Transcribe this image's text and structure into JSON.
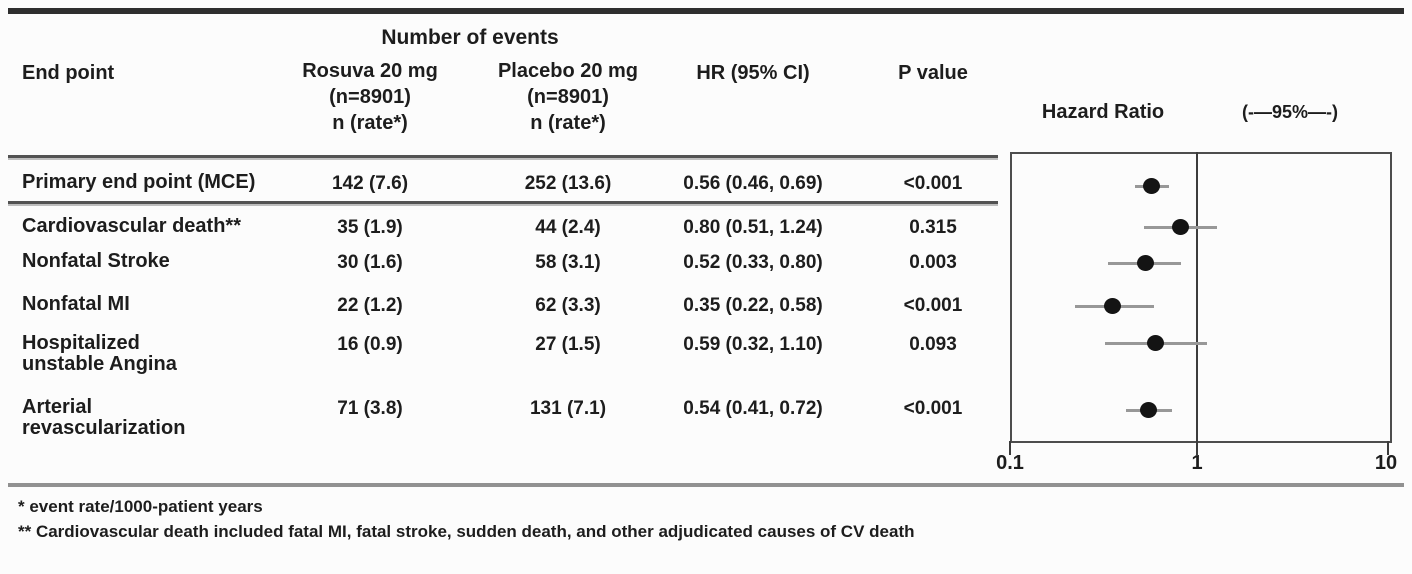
{
  "colors": {
    "text": "#1d1d1d",
    "top_rule": "#2e2e2e",
    "bottom_rule": "#919191",
    "separator_dark": "#525252",
    "separator_light": "#bdbdbd",
    "plot_border": "#4d4d4d",
    "reference_line": "#3c3c3c",
    "whisker": "#989898",
    "marker": "#141414",
    "background": "#fcfcfc"
  },
  "table": {
    "group_header": "Number of events",
    "columns": {
      "endpoint": "End point",
      "rosuva": [
        "Rosuva 20 mg",
        "(n=8901)",
        "n (rate*)"
      ],
      "placebo": [
        "Placebo 20 mg",
        "(n=8901)",
        "n (rate*)"
      ],
      "hr": "HR (95% CI)",
      "p": "P value"
    },
    "rows": [
      {
        "endpoint": [
          "Primary end point (MCE)"
        ],
        "rosuva_n": "142 (7.6)",
        "placebo_n": "252 (13.6)",
        "hr_ci": "0.56 (0.46, 0.69)",
        "p_value": "<0.001"
      },
      {
        "endpoint": [
          "Cardiovascular death**"
        ],
        "rosuva_n": "35 (1.9)",
        "placebo_n": "44 (2.4)",
        "hr_ci": "0.80 (0.51, 1.24)",
        "p_value": "0.315"
      },
      {
        "endpoint": [
          "Nonfatal Stroke"
        ],
        "rosuva_n": "30 (1.6)",
        "placebo_n": "58 (3.1)",
        "hr_ci": "0.52 (0.33, 0.80)",
        "p_value": "0.003"
      },
      {
        "endpoint": [
          "Nonfatal MI"
        ],
        "rosuva_n": "22 (1.2)",
        "placebo_n": "62 (3.3)",
        "hr_ci": "0.35 (0.22, 0.58)",
        "p_value": "<0.001"
      },
      {
        "endpoint": [
          "Hospitalized",
          "unstable Angina"
        ],
        "rosuva_n": "16 (0.9)",
        "placebo_n": "27 (1.5)",
        "hr_ci": "0.59 (0.32, 1.10)",
        "p_value": "0.093"
      },
      {
        "endpoint": [
          "Arterial",
          "revascularization"
        ],
        "rosuva_n": "71 (3.8)",
        "placebo_n": "131 (7.1)",
        "hr_ci": "0.54 (0.41, 0.72)",
        "p_value": "<0.001"
      }
    ]
  },
  "plot": {
    "title": "Hazard Ratio",
    "ci_header": "(-—95%—-)",
    "x_tick_labels": [
      "0.1",
      "1",
      "10"
    ]
  },
  "footnotes": [
    "* event rate/1000-patient years",
    "** Cardiovascular death included fatal MI, fatal stroke, sudden death, and other adjudicated causes of CV death"
  ],
  "chart_data": {
    "type": "scatter",
    "subtype": "forest-plot",
    "title": "Hazard Ratio",
    "x_scale": "log",
    "xlim": [
      0.1,
      10
    ],
    "x_ticks": [
      0.1,
      1,
      10
    ],
    "reference_line_x": 1,
    "ci_level": "95%",
    "legend_note": "(-—95%—-)",
    "points": [
      {
        "label": "Primary end point (MCE)",
        "hr": 0.56,
        "ci_low": 0.46,
        "ci_high": 0.69
      },
      {
        "label": "Cardiovascular death**",
        "hr": 0.8,
        "ci_low": 0.51,
        "ci_high": 1.24
      },
      {
        "label": "Nonfatal Stroke",
        "hr": 0.52,
        "ci_low": 0.33,
        "ci_high": 0.8
      },
      {
        "label": "Nonfatal MI",
        "hr": 0.35,
        "ci_low": 0.22,
        "ci_high": 0.58
      },
      {
        "label": "Hospitalized unstable Angina",
        "hr": 0.59,
        "ci_low": 0.32,
        "ci_high": 1.1
      },
      {
        "label": "Arterial revascularization",
        "hr": 0.54,
        "ci_low": 0.41,
        "ci_high": 0.72
      }
    ]
  }
}
